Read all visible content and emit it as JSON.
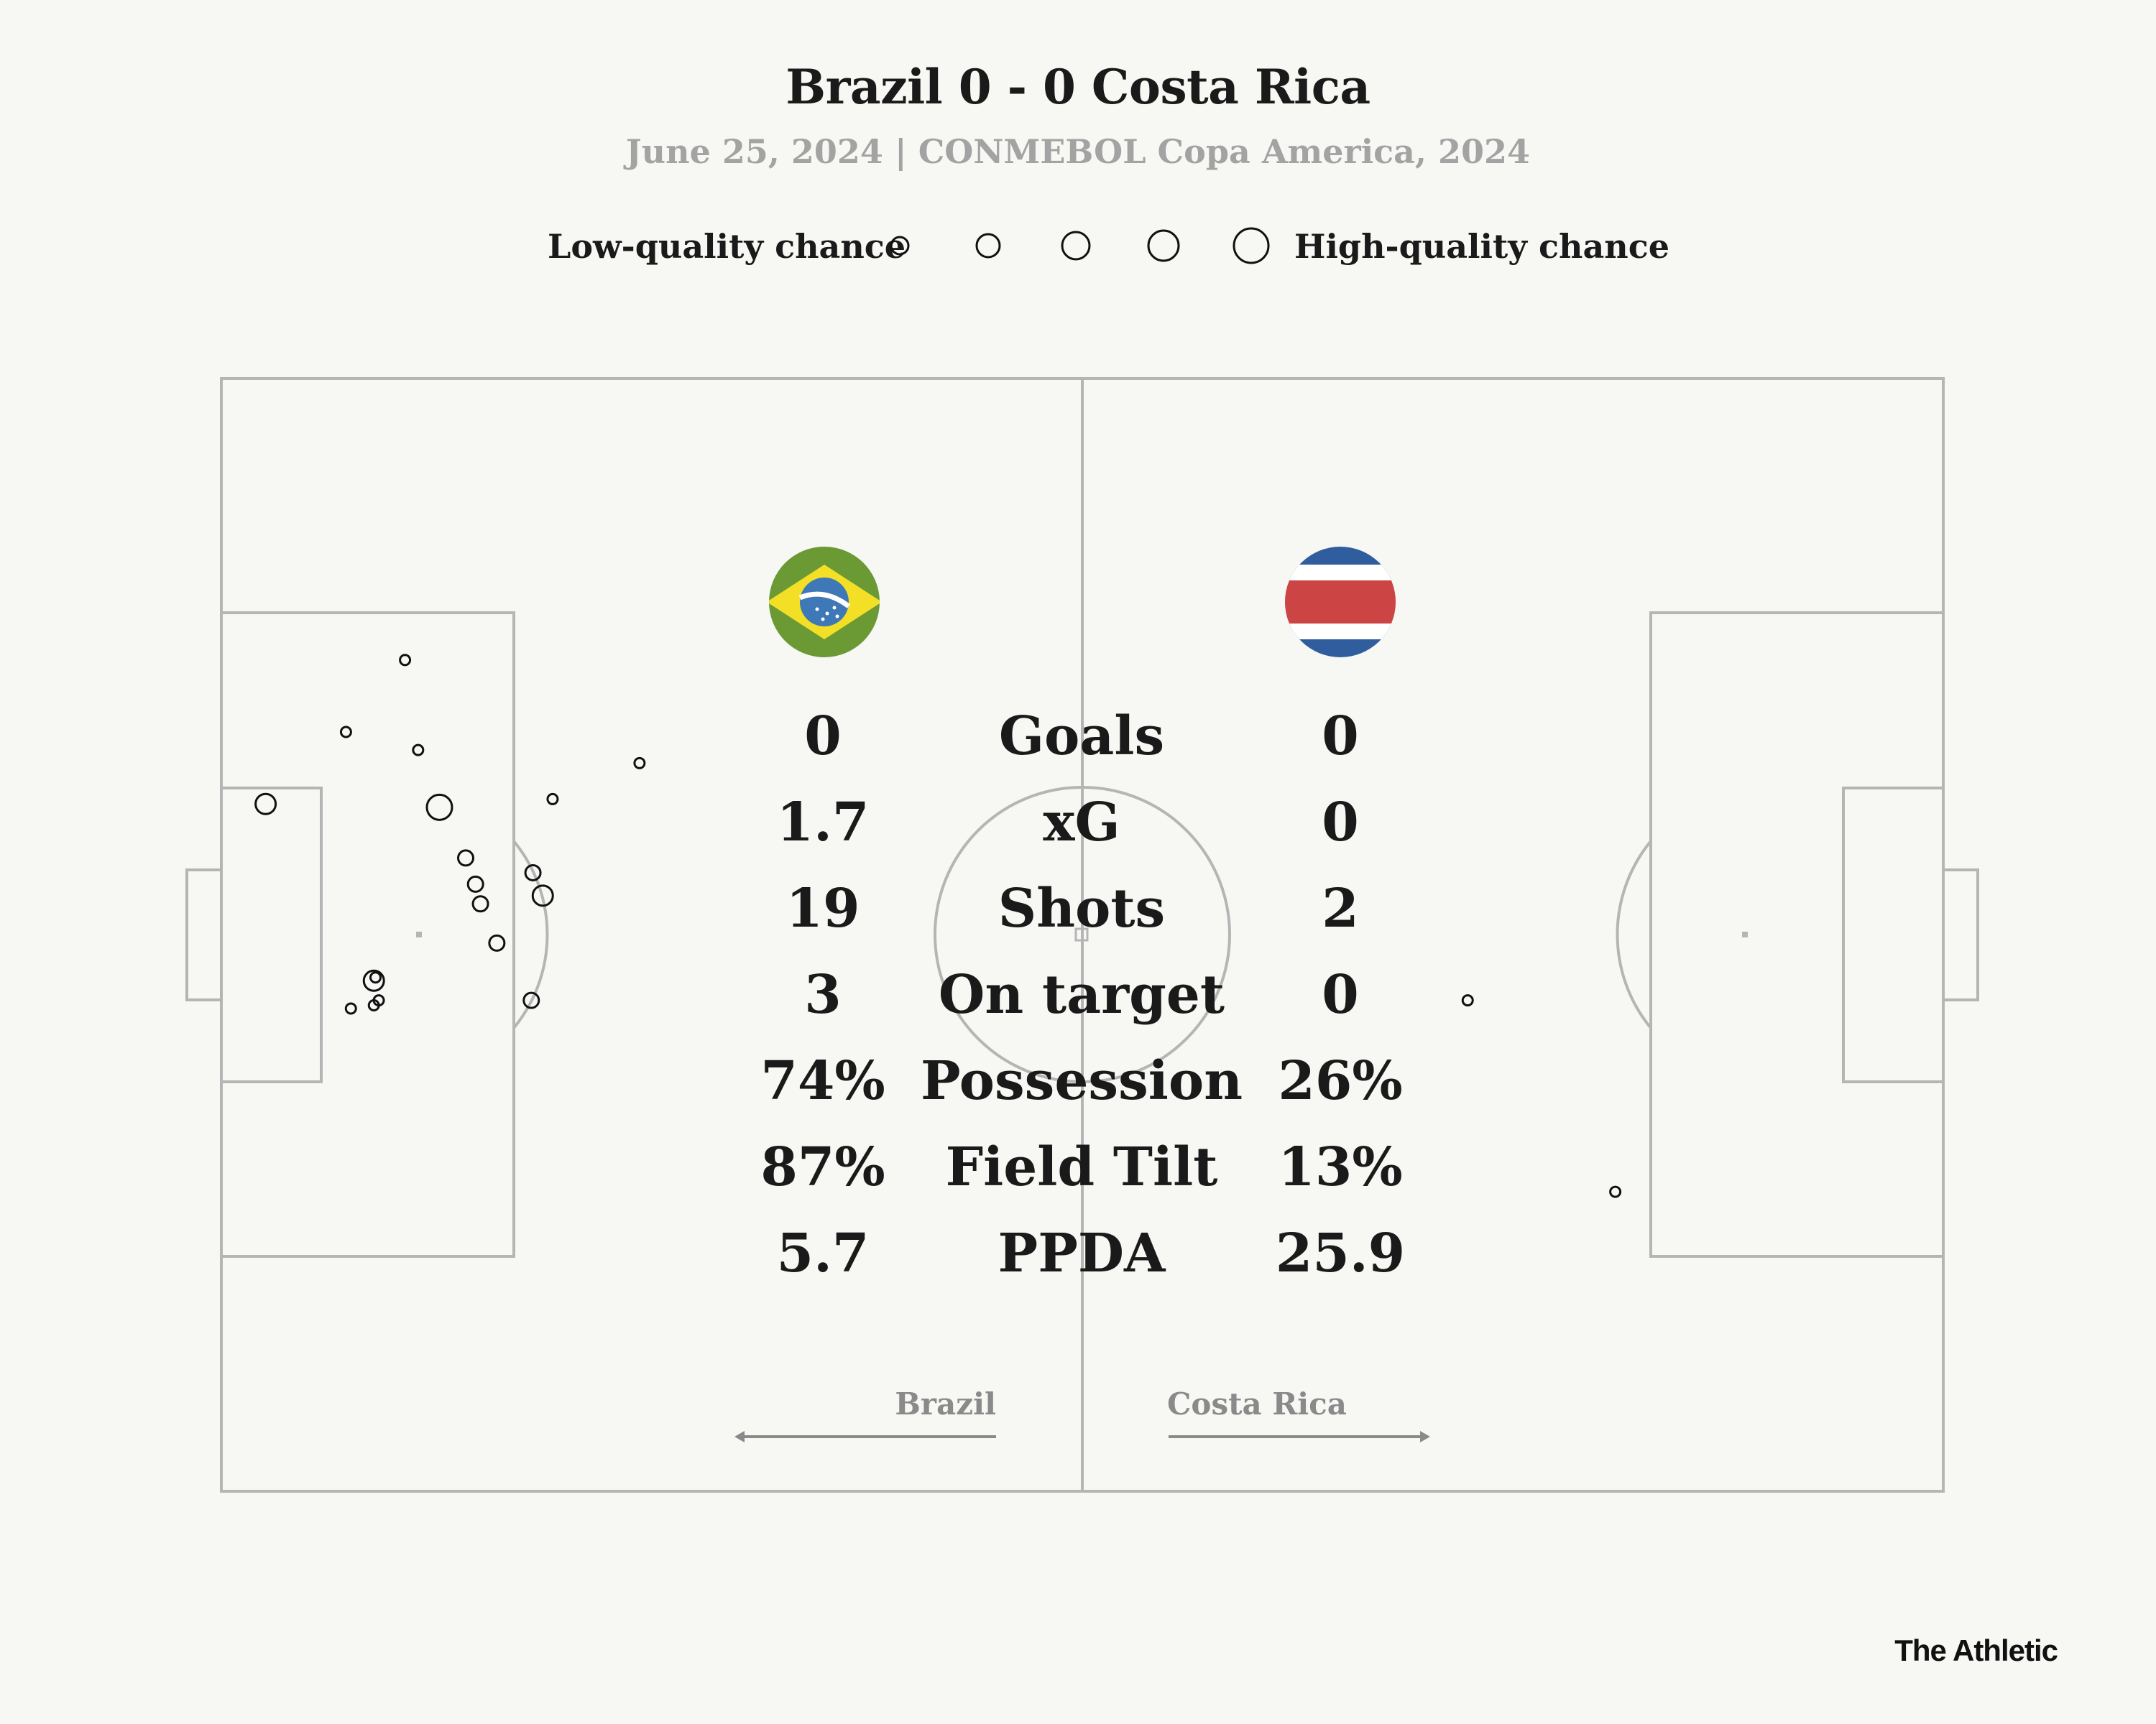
{
  "header": {
    "title": "Brazil 0 - 0 Costa Rica",
    "subtitle": "June 25, 2024 | CONMEBOL Copa America, 2024"
  },
  "legend": {
    "low_label": "Low-quality chance",
    "high_label": "High-quality chance"
  },
  "teams": {
    "home": {
      "name": "Brazil",
      "flag_icon": "brazil-flag-icon",
      "direction": "left"
    },
    "away": {
      "name": "Costa Rica",
      "flag_icon": "costa-rica-flag-icon",
      "direction": "right"
    }
  },
  "stats": [
    {
      "label": "Goals",
      "home": "0",
      "away": "0"
    },
    {
      "label": "xG",
      "home": "1.7",
      "away": "0"
    },
    {
      "label": "Shots",
      "home": "19",
      "away": "2"
    },
    {
      "label": "On target",
      "home": "3",
      "away": "0"
    },
    {
      "label": "Possession",
      "home": "74%",
      "away": "26%"
    },
    {
      "label": "Field Tilt",
      "home": "87%",
      "away": "13%"
    },
    {
      "label": "PPDA",
      "home": "5.7",
      "away": "25.9"
    }
  ],
  "branding": {
    "logo": "The Athletic"
  },
  "colors": {
    "background": "#f7f7f4",
    "pitch_lines": "#b5b5b5",
    "subtitle": "#a3a3a3",
    "shot_stroke": "#111111",
    "arrow": "#8a8a8a"
  },
  "chart_data": {
    "type": "scatter",
    "description_units": "pitch coordinates in meters, length 105 x width 68; Brazil attack left goal (x=0), Costa Rica attack right goal (x=105)",
    "x_range": [
      0,
      105
    ],
    "y_range": [
      0,
      68
    ],
    "series": [
      {
        "name": "Brazil",
        "points": [
          {
            "x": 11.2,
            "y": 17.2,
            "q": 1
          },
          {
            "x": 7.6,
            "y": 21.6,
            "q": 1
          },
          {
            "x": 12.0,
            "y": 22.7,
            "q": 1
          },
          {
            "x": 2.7,
            "y": 26.0,
            "q": 3
          },
          {
            "x": 13.3,
            "y": 26.2,
            "q": 4
          },
          {
            "x": 20.2,
            "y": 25.7,
            "q": 1
          },
          {
            "x": 25.5,
            "y": 23.5,
            "q": 1
          },
          {
            "x": 14.9,
            "y": 29.3,
            "q": 2
          },
          {
            "x": 15.5,
            "y": 30.9,
            "q": 2
          },
          {
            "x": 19.0,
            "y": 30.2,
            "q": 2
          },
          {
            "x": 19.6,
            "y": 31.6,
            "q": 3
          },
          {
            "x": 15.8,
            "y": 32.1,
            "q": 2
          },
          {
            "x": 16.8,
            "y": 34.5,
            "q": 2
          },
          {
            "x": 9.3,
            "y": 36.8,
            "q": 3
          },
          {
            "x": 9.4,
            "y": 36.6,
            "q": 1
          },
          {
            "x": 9.3,
            "y": 38.3,
            "q": 1
          },
          {
            "x": 9.6,
            "y": 38.0,
            "q": 1
          },
          {
            "x": 7.9,
            "y": 38.5,
            "q": 1
          },
          {
            "x": 18.9,
            "y": 38.0,
            "q": 2
          }
        ]
      },
      {
        "name": "Costa Rica",
        "points": [
          {
            "x": 76.0,
            "y": 38.0,
            "q": 1
          },
          {
            "x": 85.0,
            "y": 49.7,
            "q": 1
          }
        ]
      }
    ]
  }
}
